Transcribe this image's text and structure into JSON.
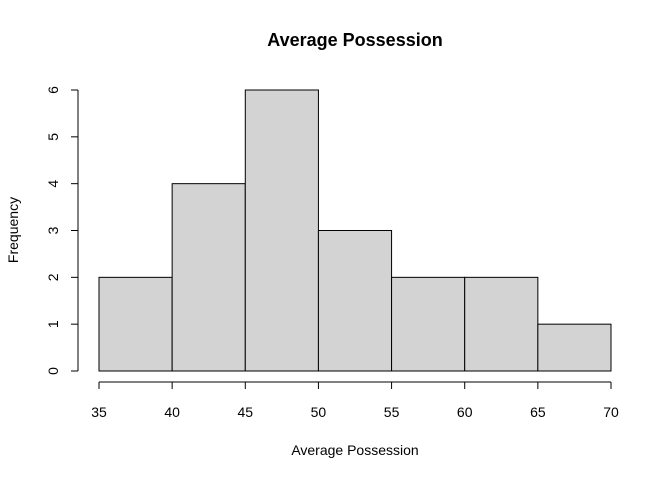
{
  "chart_data": {
    "type": "bar",
    "title": "Average Possession",
    "xlabel": "Average Possession",
    "ylabel": "Frequency",
    "bins": [
      {
        "start": 35,
        "end": 40,
        "value": 2
      },
      {
        "start": 40,
        "end": 45,
        "value": 4
      },
      {
        "start": 45,
        "end": 50,
        "value": 6
      },
      {
        "start": 50,
        "end": 55,
        "value": 3
      },
      {
        "start": 55,
        "end": 60,
        "value": 2
      },
      {
        "start": 60,
        "end": 65,
        "value": 2
      },
      {
        "start": 65,
        "end": 70,
        "value": 1
      }
    ],
    "xticks": [
      "35",
      "40",
      "45",
      "50",
      "55",
      "60",
      "65",
      "70"
    ],
    "yticks": [
      "0",
      "1",
      "2",
      "3",
      "4",
      "5",
      "6"
    ],
    "xlim": [
      35,
      70
    ],
    "ylim": [
      0,
      6
    ],
    "bar_color": "#d3d3d3",
    "grid": false
  }
}
